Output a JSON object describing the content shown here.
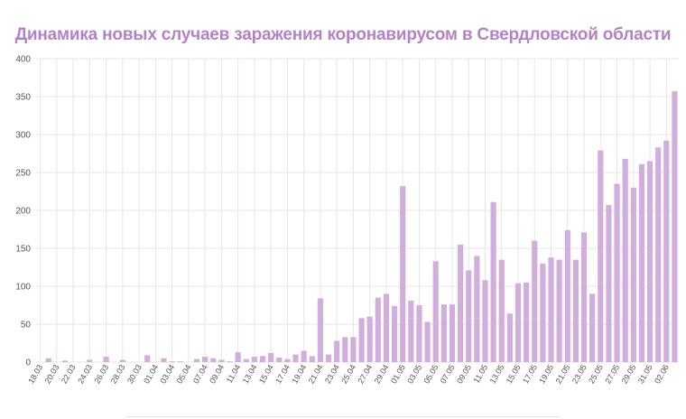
{
  "colors": {
    "title": "#b680c6",
    "bar": "#d2aedd",
    "grid": "#e6e6e6"
  },
  "chart_data": {
    "type": "bar",
    "title": "Динамика новых случаев заражения коронавирусом в Свердловской области",
    "xlabel": "",
    "ylabel": "",
    "ylim": [
      0,
      400
    ],
    "yticks": [
      0,
      50,
      100,
      150,
      200,
      250,
      300,
      350,
      400
    ],
    "grid": true,
    "x_tick_labels": [
      "18.03",
      "20.03",
      "22.03",
      "24.03",
      "26.03",
      "28.03",
      "30.03",
      "01.04",
      "03.04",
      "05.04",
      "07.04",
      "09.04",
      "11.04",
      "13.04",
      "15.04",
      "17.04",
      "19.04",
      "21.04",
      "23.04",
      "25.04",
      "27.04",
      "29.04",
      "01.05",
      "03.05",
      "05.05",
      "07.05",
      "09.05",
      "11.05",
      "13.05",
      "15.05",
      "17.05",
      "19.05",
      "21.05",
      "23.05",
      "25.05",
      "27.05",
      "29.05",
      "31.05",
      "02.06"
    ],
    "categories": [
      "18.03",
      "19.03",
      "20.03",
      "21.03",
      "22.03",
      "23.03",
      "24.03",
      "25.03",
      "26.03",
      "27.03",
      "28.03",
      "29.03",
      "30.03",
      "31.03",
      "01.04",
      "02.04",
      "03.04",
      "04.04",
      "05.04",
      "06.04",
      "07.04",
      "08.04",
      "09.04",
      "10.04",
      "11.04",
      "12.04",
      "13.04",
      "14.04",
      "15.04",
      "16.04",
      "17.04",
      "18.04",
      "19.04",
      "20.04",
      "21.04",
      "22.04",
      "23.04",
      "24.04",
      "25.04",
      "26.04",
      "27.04",
      "28.04",
      "29.04",
      "30.04",
      "01.05",
      "02.05",
      "03.05",
      "04.05",
      "05.05",
      "06.05",
      "07.05",
      "08.05",
      "09.05",
      "10.05",
      "11.05",
      "12.05",
      "13.05",
      "14.05",
      "15.05",
      "16.05",
      "17.05",
      "18.05",
      "19.05",
      "20.05",
      "21.05",
      "22.05",
      "23.05",
      "24.05",
      "25.05",
      "26.05",
      "27.05",
      "28.05",
      "29.05",
      "30.05",
      "31.05",
      "01.06",
      "02.06",
      "03.06"
    ],
    "values": [
      0,
      5,
      0,
      2,
      0,
      0,
      3,
      0,
      7,
      0,
      3,
      0,
      0,
      9,
      0,
      5,
      1,
      1,
      0,
      4,
      7,
      5,
      3,
      1,
      13,
      4,
      7,
      8,
      12,
      6,
      4,
      10,
      15,
      8,
      84,
      10,
      28,
      33,
      33,
      58,
      60,
      85,
      90,
      74,
      232,
      81,
      75,
      53,
      133,
      76,
      76,
      155,
      121,
      140,
      108,
      211,
      135,
      64,
      104,
      105,
      160,
      130,
      138,
      135,
      174,
      135,
      171,
      90,
      279,
      207,
      235,
      268,
      230,
      261,
      265,
      283,
      292,
      357
    ]
  }
}
